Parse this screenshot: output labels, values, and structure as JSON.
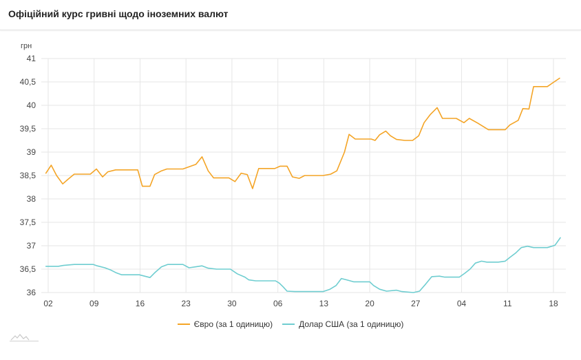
{
  "header": {
    "title": "Офіційний курс гривні щодо іноземних валют"
  },
  "chart_data": {
    "type": "line",
    "ylabel": "грн",
    "ylim": [
      36,
      41
    ],
    "yticks": [
      36,
      36.5,
      37,
      37.5,
      38,
      38.5,
      39,
      39.5,
      40,
      40.5,
      41
    ],
    "ytick_labels": [
      "36",
      "36,5",
      "37",
      "37,5",
      "38",
      "38,5",
      "39",
      "39,5",
      "40",
      "40,5",
      "41"
    ],
    "x_start_day": 0,
    "x_end_day": 132,
    "xticks": [
      {
        "day": 0,
        "label": "02"
      },
      {
        "day": 12,
        "label": "09"
      },
      {
        "day": 24,
        "label": "16"
      },
      {
        "day": 36,
        "label": "23"
      },
      {
        "day": 48,
        "label": "30"
      },
      {
        "day": 60,
        "label": "06"
      },
      {
        "day": 72,
        "label": "13"
      },
      {
        "day": 84,
        "label": "20"
      },
      {
        "day": 96,
        "label": "27"
      },
      {
        "day": 108,
        "label": "04"
      },
      {
        "day": 120,
        "label": "11"
      },
      {
        "day": 132,
        "label": "18"
      }
    ],
    "grid": true,
    "legend_position": "bottom-center",
    "series": [
      {
        "name": "Євро (за 1 одиницю)",
        "color": "#f4a425",
        "points": [
          [
            -0.6,
            38.55
          ],
          [
            0.8,
            38.72
          ],
          [
            2.2,
            38.5
          ],
          [
            3.8,
            38.32
          ],
          [
            5.2,
            38.42
          ],
          [
            6.8,
            38.53
          ],
          [
            11,
            38.53
          ],
          [
            12.6,
            38.64
          ],
          [
            14.2,
            38.47
          ],
          [
            15.6,
            38.58
          ],
          [
            17.6,
            38.62
          ],
          [
            23.4,
            38.62
          ],
          [
            24.6,
            38.27
          ],
          [
            26.6,
            38.27
          ],
          [
            27.8,
            38.52
          ],
          [
            29.6,
            38.6
          ],
          [
            31,
            38.64
          ],
          [
            35.2,
            38.64
          ],
          [
            38.6,
            38.74
          ],
          [
            40.2,
            38.9
          ],
          [
            41.8,
            38.6
          ],
          [
            43.2,
            38.45
          ],
          [
            47.2,
            38.45
          ],
          [
            48.8,
            38.37
          ],
          [
            50.4,
            38.55
          ],
          [
            52,
            38.52
          ],
          [
            53.4,
            38.22
          ],
          [
            55,
            38.65
          ],
          [
            59.2,
            38.65
          ],
          [
            60.6,
            38.7
          ],
          [
            62.4,
            38.7
          ],
          [
            63.8,
            38.47
          ],
          [
            65.6,
            38.44
          ],
          [
            67,
            38.5
          ],
          [
            71.8,
            38.5
          ],
          [
            73.8,
            38.53
          ],
          [
            75.4,
            38.6
          ],
          [
            77.4,
            39
          ],
          [
            78.6,
            39.38
          ],
          [
            80.2,
            39.28
          ],
          [
            84.4,
            39.28
          ],
          [
            85.4,
            39.25
          ],
          [
            86.6,
            39.37
          ],
          [
            88.2,
            39.45
          ],
          [
            89.4,
            39.35
          ],
          [
            91,
            39.27
          ],
          [
            93.2,
            39.25
          ],
          [
            95.2,
            39.25
          ],
          [
            96.8,
            39.35
          ],
          [
            98.2,
            39.63
          ],
          [
            99.8,
            39.8
          ],
          [
            101.6,
            39.95
          ],
          [
            103,
            39.72
          ],
          [
            106.6,
            39.72
          ],
          [
            108.6,
            39.63
          ],
          [
            110,
            39.72
          ],
          [
            112.2,
            39.62
          ],
          [
            113.4,
            39.56
          ],
          [
            115,
            39.48
          ],
          [
            119.4,
            39.48
          ],
          [
            120.6,
            39.58
          ],
          [
            122.8,
            39.68
          ],
          [
            124,
            39.93
          ],
          [
            125.6,
            39.92
          ],
          [
            126.8,
            40.4
          ],
          [
            130.4,
            40.4
          ],
          [
            131.8,
            40.48
          ],
          [
            133.6,
            40.58
          ]
        ]
      },
      {
        "name": "Долар США (за 1 одиницю)",
        "color": "#6ecdd0",
        "points": [
          [
            -0.6,
            36.56
          ],
          [
            2.6,
            36.56
          ],
          [
            4,
            36.58
          ],
          [
            6.8,
            36.6
          ],
          [
            11.8,
            36.6
          ],
          [
            12.8,
            36.57
          ],
          [
            14.8,
            36.53
          ],
          [
            16.4,
            36.48
          ],
          [
            17.8,
            36.42
          ],
          [
            19.2,
            36.38
          ],
          [
            23.8,
            36.38
          ],
          [
            25.2,
            36.35
          ],
          [
            26.6,
            36.32
          ],
          [
            27.8,
            36.42
          ],
          [
            29.6,
            36.55
          ],
          [
            31.2,
            36.6
          ],
          [
            35.2,
            36.6
          ],
          [
            36.8,
            36.53
          ],
          [
            38.6,
            36.55
          ],
          [
            40.2,
            36.57
          ],
          [
            41.8,
            36.52
          ],
          [
            44,
            36.5
          ],
          [
            47.6,
            36.5
          ],
          [
            49.4,
            36.4
          ],
          [
            51.4,
            36.33
          ],
          [
            52.4,
            36.27
          ],
          [
            54.2,
            36.25
          ],
          [
            59.4,
            36.25
          ],
          [
            60.4,
            36.2
          ],
          [
            61.4,
            36.12
          ],
          [
            62.4,
            36.03
          ],
          [
            64.4,
            36.02
          ],
          [
            71.8,
            36.02
          ],
          [
            73.6,
            36.07
          ],
          [
            75.2,
            36.15
          ],
          [
            76.6,
            36.3
          ],
          [
            78,
            36.27
          ],
          [
            79.8,
            36.23
          ],
          [
            84,
            36.23
          ],
          [
            85,
            36.15
          ],
          [
            86.6,
            36.07
          ],
          [
            88.4,
            36.03
          ],
          [
            91,
            36.05
          ],
          [
            92.4,
            36.02
          ],
          [
            95.4,
            36
          ],
          [
            97,
            36.03
          ],
          [
            98.6,
            36.18
          ],
          [
            100.2,
            36.34
          ],
          [
            102.2,
            36.35
          ],
          [
            103.6,
            36.33
          ],
          [
            107.4,
            36.33
          ],
          [
            108.8,
            36.41
          ],
          [
            110.2,
            36.5
          ],
          [
            111.6,
            36.63
          ],
          [
            113.2,
            36.67
          ],
          [
            114.6,
            36.65
          ],
          [
            117.6,
            36.65
          ],
          [
            119.4,
            36.67
          ],
          [
            120.6,
            36.75
          ],
          [
            122.2,
            36.85
          ],
          [
            123.6,
            36.96
          ],
          [
            125.2,
            36.99
          ],
          [
            126.8,
            36.96
          ],
          [
            130.4,
            36.96
          ],
          [
            132.4,
            37.01
          ],
          [
            133.8,
            37.17
          ]
        ]
      }
    ]
  }
}
